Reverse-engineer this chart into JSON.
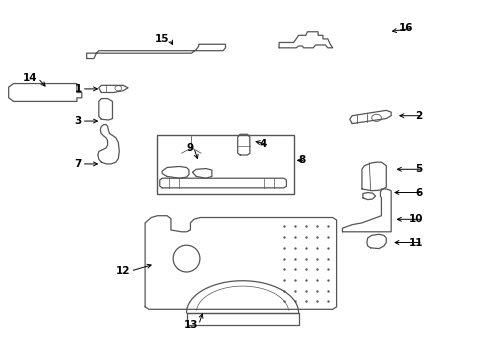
{
  "background_color": "#ffffff",
  "line_color": "#555555",
  "label_color": "#000000",
  "lw": 0.9,
  "labels": {
    "14": [
      0.075,
      0.785,
      0.02,
      -0.03
    ],
    "15": [
      0.345,
      0.895,
      0.01,
      -0.025
    ],
    "16": [
      0.845,
      0.925,
      -0.05,
      -0.01
    ],
    "2": [
      0.865,
      0.68,
      -0.055,
      0.0
    ],
    "4": [
      0.545,
      0.6,
      -0.03,
      0.01
    ],
    "5": [
      0.865,
      0.53,
      -0.06,
      0.0
    ],
    "6": [
      0.865,
      0.465,
      -0.065,
      0.0
    ],
    "1": [
      0.165,
      0.755,
      0.04,
      0.0
    ],
    "3": [
      0.165,
      0.665,
      0.04,
      0.0
    ],
    "7": [
      0.165,
      0.545,
      0.04,
      0.0
    ],
    "8": [
      0.625,
      0.555,
      -0.025,
      0.0
    ],
    "9": [
      0.395,
      0.59,
      0.01,
      -0.04
    ],
    "10": [
      0.865,
      0.39,
      -0.06,
      0.0
    ],
    "11": [
      0.865,
      0.325,
      -0.065,
      0.0
    ],
    "12": [
      0.265,
      0.245,
      0.05,
      0.02
    ],
    "13": [
      0.405,
      0.095,
      0.01,
      0.04
    ]
  }
}
